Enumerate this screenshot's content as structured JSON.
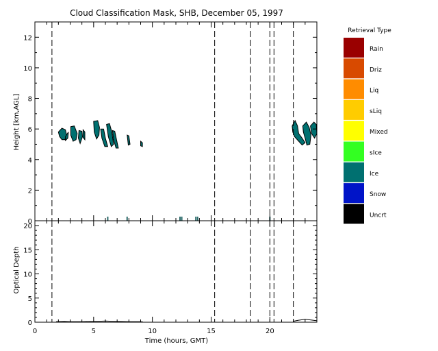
{
  "chart_data": [
    {
      "type": "area",
      "panel": "top",
      "title": "Cloud Classification Mask, SHB, December 05, 1997",
      "ylabel": "Height [km,AGL]",
      "xlim": [
        0,
        24
      ],
      "ylim": [
        0,
        13
      ],
      "yticks": [
        "0",
        "2",
        "4",
        "6",
        "8",
        "10",
        "12"
      ],
      "dashed_time_markers_hours": [
        1.45,
        15.3,
        18.35,
        20.0,
        20.35,
        22.0
      ],
      "legend": {
        "title": "Retrieval Type",
        "entries": [
          {
            "label": "Rain",
            "color": "#9a0000"
          },
          {
            "label": "Driz",
            "color": "#d84a00"
          },
          {
            "label": "Liq",
            "color": "#ff8c00"
          },
          {
            "label": "sLiq",
            "color": "#ffcc00"
          },
          {
            "label": "Mixed",
            "color": "#ffff00"
          },
          {
            "label": "sIce",
            "color": "#33ff22"
          },
          {
            "label": "Ice",
            "color": "#007070"
          },
          {
            "label": "Snow",
            "color": "#0014c8"
          },
          {
            "label": "Uncrt",
            "color": "#000000"
          }
        ]
      },
      "cloud_blobs": [
        {
          "class": "Ice",
          "poly": [
            [
              2.0,
              5.8
            ],
            [
              2.3,
              6.05
            ],
            [
              2.6,
              5.95
            ],
            [
              2.7,
              5.6
            ],
            [
              2.55,
              5.3
            ],
            [
              2.3,
              5.3
            ],
            [
              2.1,
              5.5
            ]
          ]
        },
        {
          "class": "Ice",
          "poly": [
            [
              2.6,
              5.5
            ],
            [
              2.85,
              5.8
            ],
            [
              2.8,
              5.4
            ],
            [
              2.6,
              5.25
            ]
          ]
        },
        {
          "class": "Ice",
          "poly": [
            [
              3.05,
              6.15
            ],
            [
              3.35,
              6.2
            ],
            [
              3.6,
              5.7
            ],
            [
              3.5,
              5.3
            ],
            [
              3.25,
              5.2
            ],
            [
              3.05,
              5.6
            ]
          ]
        },
        {
          "class": "Ice",
          "poly": [
            [
              3.75,
              5.9
            ],
            [
              4.0,
              5.85
            ],
            [
              4.05,
              5.5
            ],
            [
              3.85,
              5.05
            ],
            [
              3.7,
              5.4
            ]
          ]
        },
        {
          "class": "Ice",
          "poly": [
            [
              4.1,
              5.95
            ],
            [
              4.25,
              5.8
            ],
            [
              4.25,
              5.3
            ],
            [
              4.1,
              5.45
            ]
          ]
        },
        {
          "class": "Ice",
          "poly": [
            [
              5.0,
              6.5
            ],
            [
              5.35,
              6.55
            ],
            [
              5.5,
              6.1
            ],
            [
              5.45,
              5.6
            ],
            [
              5.25,
              5.35
            ],
            [
              5.05,
              5.8
            ]
          ]
        },
        {
          "class": "Ice",
          "poly": [
            [
              5.6,
              6.0
            ],
            [
              5.85,
              6.0
            ],
            [
              6.0,
              5.4
            ],
            [
              6.2,
              4.85
            ],
            [
              5.95,
              4.85
            ],
            [
              5.7,
              5.4
            ]
          ]
        },
        {
          "class": "Ice",
          "poly": [
            [
              6.1,
              6.3
            ],
            [
              6.35,
              6.35
            ],
            [
              6.55,
              5.8
            ],
            [
              6.7,
              5.0
            ],
            [
              6.5,
              4.85
            ],
            [
              6.25,
              5.5
            ]
          ]
        },
        {
          "class": "Ice",
          "poly": [
            [
              6.6,
              5.9
            ],
            [
              6.8,
              5.85
            ],
            [
              6.95,
              5.3
            ],
            [
              7.1,
              4.75
            ],
            [
              6.9,
              4.75
            ],
            [
              6.7,
              5.3
            ]
          ]
        },
        {
          "class": "Ice",
          "poly": [
            [
              7.85,
              5.6
            ],
            [
              8.0,
              5.55
            ],
            [
              8.1,
              5.0
            ],
            [
              7.95,
              4.95
            ]
          ]
        },
        {
          "class": "Ice",
          "poly": [
            [
              9.0,
              5.2
            ],
            [
              9.15,
              5.1
            ],
            [
              9.15,
              4.85
            ],
            [
              9.0,
              4.9
            ]
          ]
        },
        {
          "class": "Ice",
          "poly": [
            [
              21.9,
              6.2
            ],
            [
              22.15,
              6.55
            ],
            [
              22.35,
              6.2
            ],
            [
              22.45,
              5.7
            ],
            [
              22.75,
              5.4
            ],
            [
              23.0,
              5.1
            ],
            [
              22.75,
              4.95
            ],
            [
              22.45,
              5.2
            ],
            [
              22.1,
              5.5
            ],
            [
              21.95,
              5.8
            ]
          ]
        },
        {
          "class": "Ice",
          "poly": [
            [
              22.8,
              6.2
            ],
            [
              23.1,
              6.45
            ],
            [
              23.35,
              6.1
            ],
            [
              23.5,
              5.6
            ],
            [
              23.4,
              5.0
            ],
            [
              23.15,
              4.95
            ],
            [
              23.0,
              5.4
            ],
            [
              22.85,
              5.8
            ]
          ]
        },
        {
          "class": "Ice",
          "poly": [
            [
              23.45,
              6.2
            ],
            [
              23.75,
              6.45
            ],
            [
              23.95,
              6.3
            ],
            [
              24.0,
              5.7
            ],
            [
              23.8,
              5.4
            ],
            [
              23.55,
              5.7
            ]
          ]
        }
      ],
      "surface_ticks_hours": [
        6.2,
        7.85,
        12.35,
        12.5,
        13.7,
        13.85,
        20.0
      ]
    },
    {
      "type": "line",
      "panel": "bottom",
      "xlabel": "Time (hours, GMT)",
      "ylabel": "Optical Depth",
      "xlim": [
        0,
        24
      ],
      "ylim": [
        0,
        21
      ],
      "xticks": [
        "0",
        "5",
        "10",
        "15",
        "20"
      ],
      "yticks": [
        "0",
        "5",
        "10",
        "15",
        "20"
      ],
      "dashed_time_markers_hours": [
        1.45,
        15.3,
        18.35,
        20.0,
        20.35,
        22.0
      ],
      "series": [
        {
          "x": [
            1.8,
            2.5,
            3.0,
            4.0,
            5.0,
            5.5,
            6.0,
            6.5,
            7.0,
            8.0,
            9.0,
            9.2,
            22.0,
            22.4,
            23.0,
            23.5,
            24.0
          ],
          "y": [
            0.1,
            0.15,
            0.1,
            0.12,
            0.15,
            0.2,
            0.25,
            0.2,
            0.15,
            0.1,
            0.1,
            0.05,
            0.2,
            0.4,
            0.6,
            0.45,
            0.3
          ]
        }
      ]
    }
  ]
}
